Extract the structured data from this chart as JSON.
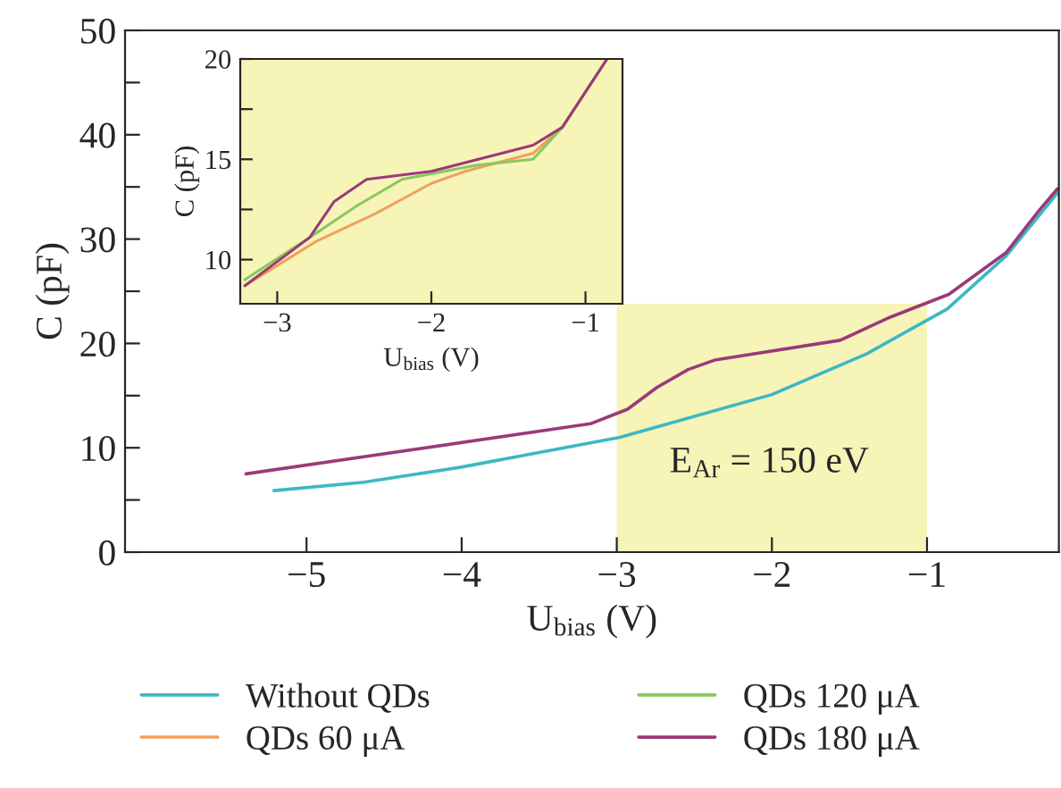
{
  "chart_data": [
    {
      "type": "line",
      "xlabel": "U$_{bias}$ (V)",
      "ylabel": "C (pF)",
      "xlim": [
        -6.17,
        -0.15
      ],
      "ylim": [
        0,
        50
      ],
      "xticks": [
        -5,
        -4,
        -3,
        -2,
        -1
      ],
      "yticks": [
        0,
        {
          "value": 5,
          "label": null
        },
        10,
        {
          "value": 15,
          "label": null
        },
        20,
        {
          "value": 25,
          "label": null
        },
        30,
        {
          "value": 35,
          "label": null
        },
        40,
        {
          "value": 45,
          "label": null
        },
        50
      ],
      "grid": false,
      "legend": "bottom",
      "bands": [
        {
          "axis": "x",
          "from": -3,
          "to": -1,
          "color": "#f7f4b8"
        }
      ],
      "annotations": [
        "E$_{Ar}$ = 150 eV"
      ],
      "series": [
        {
          "name": "Without QDs",
          "color": "#3cb8c4",
          "x": [
            -5.21,
            -4.63,
            -4.02,
            -2.98,
            -2.0,
            -1.39,
            -0.87,
            -0.49,
            -0.16
          ],
          "values": [
            5.9,
            6.7,
            8.1,
            11.0,
            15.1,
            19.0,
            23.3,
            28.4,
            34.4
          ]
        },
        {
          "name": "QDs 180 μA",
          "color": "#9a3a7a",
          "x": [
            -5.39,
            -3.17,
            -2.93,
            -2.74,
            -2.54,
            -2.37,
            -1.56,
            -1.24,
            -0.86,
            -0.49,
            -0.28,
            -0.16
          ],
          "values": [
            7.5,
            12.3,
            13.7,
            15.8,
            17.5,
            18.4,
            20.3,
            22.5,
            24.7,
            28.7,
            32.7,
            34.8
          ]
        }
      ]
    },
    {
      "type": "line",
      "xlabel": "U$_{bias}$ (V)",
      "ylabel": "C (pF)",
      "xlim": [
        -3.24,
        -0.76
      ],
      "ylim": [
        7.8,
        20
      ],
      "xticks": [
        -3,
        -2,
        -1
      ],
      "yticks": [
        10,
        {
          "value": 12.5,
          "label": null
        },
        15,
        {
          "value": 17.5,
          "label": null
        },
        20
      ],
      "grid": false,
      "legend": "bottom",
      "series": [
        {
          "name": "QDs 60 μA",
          "color": "#f0a060",
          "x": [
            -3.21,
            -2.75,
            -2.36,
            -2.0,
            -1.78,
            -1.34,
            -1.15,
            -0.86
          ],
          "values": [
            8.7,
            10.9,
            12.3,
            13.8,
            14.4,
            15.3,
            16.6,
            20.0
          ]
        },
        {
          "name": "QDs 120 μA",
          "color": "#88c860",
          "x": [
            -3.21,
            -2.79,
            -2.48,
            -2.19,
            -1.71,
            -1.34,
            -1.15,
            -0.86
          ],
          "values": [
            9.0,
            11.1,
            12.7,
            14.0,
            14.7,
            15.0,
            16.6,
            20.0
          ]
        },
        {
          "name": "QDs 180 μA",
          "color": "#9a3a7a",
          "x": [
            -3.21,
            -2.79,
            -2.63,
            -2.42,
            -2.0,
            -1.34,
            -1.15,
            -0.86
          ],
          "values": [
            8.7,
            11.1,
            12.9,
            14.0,
            14.4,
            15.7,
            16.6,
            20.0
          ]
        }
      ]
    }
  ]
}
